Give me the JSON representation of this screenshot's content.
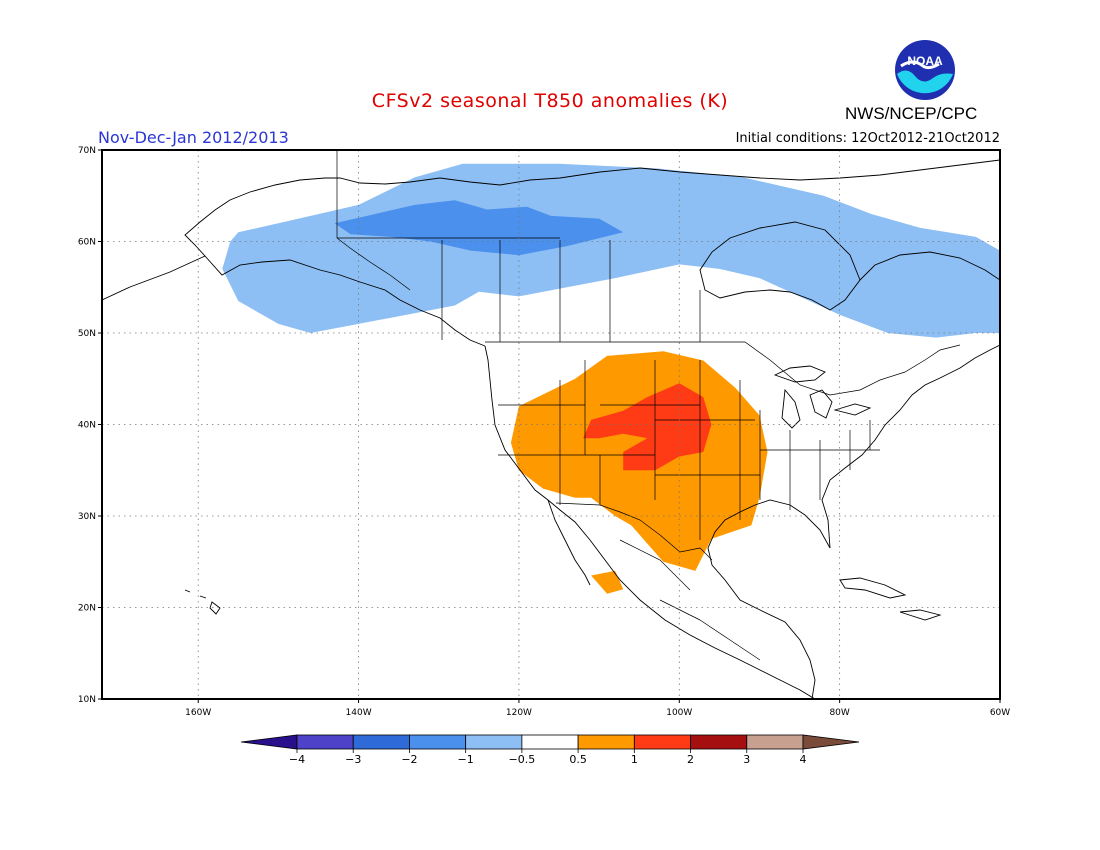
{
  "header": {
    "title": "CFSv2 seasonal T850 anomalies (K)",
    "period": "Nov-Dec-Jan 2012/2013",
    "initial_conditions": "Initial conditions: 12Oct2012-21Oct2012",
    "agency": "NWS/NCEP/CPC",
    "logo_text": "NOAA"
  },
  "map": {
    "projection": "lat-lon",
    "lon_range": [
      -172,
      -60
    ],
    "lat_range": [
      10,
      70
    ],
    "lat_ticks": [
      {
        "value": 70,
        "label": "70N"
      },
      {
        "value": 60,
        "label": "60N"
      },
      {
        "value": 50,
        "label": "50N"
      },
      {
        "value": 40,
        "label": "40N"
      },
      {
        "value": 30,
        "label": "30N"
      },
      {
        "value": 20,
        "label": "20N"
      },
      {
        "value": 10,
        "label": "10N"
      }
    ],
    "lon_ticks": [
      {
        "value": -160,
        "label": "160W"
      },
      {
        "value": -140,
        "label": "140W"
      },
      {
        "value": -120,
        "label": "120W"
      },
      {
        "value": -100,
        "label": "100W"
      },
      {
        "value": -80,
        "label": "80W"
      },
      {
        "value": -60,
        "label": "60W"
      }
    ],
    "grid": "dotted"
  },
  "colorbar": {
    "labels": [
      "-4",
      "-3",
      "-2",
      "-1",
      "-0.5",
      "0.5",
      "1",
      "2",
      "3",
      "4"
    ],
    "colors": [
      "#2a0f8c",
      "#4e43c8",
      "#2f6ad9",
      "#4a90ec",
      "#8dbff5",
      "#ffffff",
      "#ff9900",
      "#ff3b16",
      "#a50f0f",
      "#c8a090",
      "#7a4a3a"
    ]
  },
  "anomaly_regions": [
    {
      "name": "cool-band-north",
      "category": "-1",
      "color": "#8dbff5",
      "polygon": [
        [
          -155,
          61
        ],
        [
          -150,
          62
        ],
        [
          -140,
          64
        ],
        [
          -133,
          67
        ],
        [
          -127,
          68.5
        ],
        [
          -115,
          68.5
        ],
        [
          -103,
          68
        ],
        [
          -92,
          67
        ],
        [
          -82,
          65
        ],
        [
          -76,
          63
        ],
        [
          -70,
          61.5
        ],
        [
          -63,
          60.5
        ],
        [
          -60,
          59
        ],
        [
          -60,
          50
        ],
        [
          -63,
          50
        ],
        [
          -68,
          49.5
        ],
        [
          -74,
          50
        ],
        [
          -80,
          52
        ],
        [
          -85,
          54
        ],
        [
          -90,
          56
        ],
        [
          -95,
          57
        ],
        [
          -100,
          57.5
        ],
        [
          -108,
          56
        ],
        [
          -114,
          55
        ],
        [
          -120,
          54
        ],
        [
          -125,
          54.5
        ],
        [
          -128,
          53
        ],
        [
          -134,
          52
        ],
        [
          -140,
          51
        ],
        [
          -146,
          50
        ],
        [
          -150,
          51
        ],
        [
          -155,
          53.5
        ],
        [
          -157,
          57
        ],
        [
          -156,
          60
        ]
      ]
    },
    {
      "name": "cool-core-north",
      "category": "-2",
      "color": "#4a90ec",
      "polygon": [
        [
          -143,
          62
        ],
        [
          -138,
          63
        ],
        [
          -133,
          64
        ],
        [
          -128,
          64.5
        ],
        [
          -124,
          63.5
        ],
        [
          -119,
          63.8
        ],
        [
          -116,
          62.8
        ],
        [
          -110,
          62.5
        ],
        [
          -107,
          61
        ],
        [
          -114,
          59.5
        ],
        [
          -120,
          58.5
        ],
        [
          -126,
          59
        ],
        [
          -131,
          60
        ],
        [
          -136,
          60.5
        ],
        [
          -141,
          60.8
        ]
      ]
    },
    {
      "name": "warm-region-west",
      "category": "0.5",
      "color": "#ff9900",
      "polygon": [
        [
          -113,
          45
        ],
        [
          -109,
          47.5
        ],
        [
          -102,
          48
        ],
        [
          -97,
          47
        ],
        [
          -93,
          44
        ],
        [
          -90,
          41
        ],
        [
          -89,
          37
        ],
        [
          -90,
          32
        ],
        [
          -91,
          29
        ],
        [
          -96,
          27.5
        ],
        [
          -98,
          24
        ],
        [
          -102,
          25
        ],
        [
          -104,
          27
        ],
        [
          -106,
          29
        ],
        [
          -108,
          30
        ],
        [
          -111,
          32
        ],
        [
          -113,
          32
        ],
        [
          -117,
          33
        ],
        [
          -120,
          35
        ],
        [
          -121,
          38
        ],
        [
          -120,
          42
        ]
      ]
    },
    {
      "name": "warm-region-baja",
      "category": "0.5",
      "color": "#ff9900",
      "polygon": [
        [
          -111,
          23.5
        ],
        [
          -108,
          24
        ],
        [
          -107,
          22
        ],
        [
          -109,
          21.5
        ]
      ]
    },
    {
      "name": "warm-core-central",
      "category": "1",
      "color": "#ff3b16",
      "polygon": [
        [
          -104,
          43
        ],
        [
          -100,
          44.5
        ],
        [
          -97,
          43
        ],
        [
          -96,
          40
        ],
        [
          -97,
          37
        ],
        [
          -100,
          36.5
        ],
        [
          -103,
          35
        ],
        [
          -107,
          35
        ],
        [
          -107,
          37
        ],
        [
          -104,
          38.5
        ],
        [
          -107,
          39
        ],
        [
          -110,
          38.5
        ],
        [
          -112,
          38.5
        ],
        [
          -111,
          40.5
        ],
        [
          -107,
          41.5
        ]
      ]
    }
  ]
}
